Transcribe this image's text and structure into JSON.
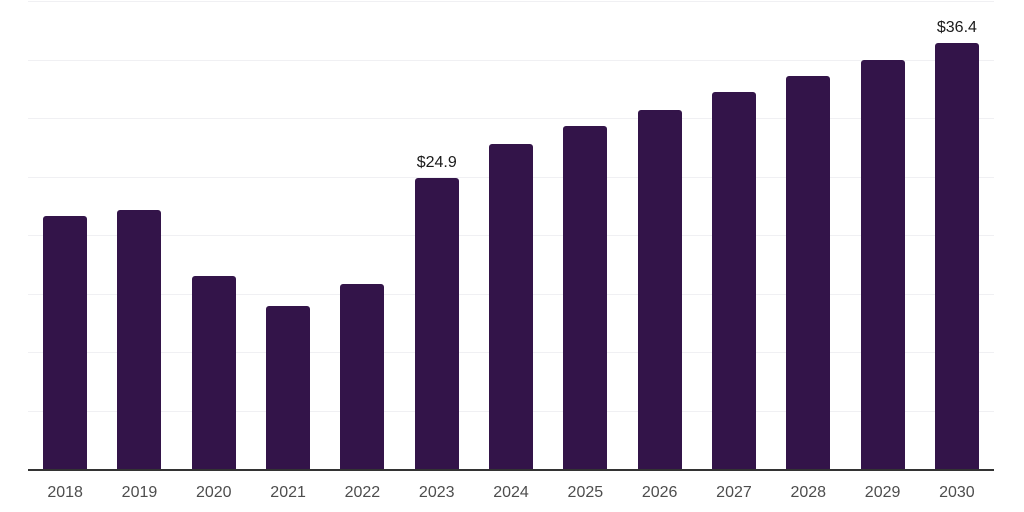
{
  "chart_data": {
    "type": "bar",
    "categories": [
      "2018",
      "2019",
      "2020",
      "2021",
      "2022",
      "2023",
      "2024",
      "2025",
      "2026",
      "2027",
      "2028",
      "2029",
      "2030"
    ],
    "values": [
      21.6,
      22.1,
      16.5,
      13.9,
      15.8,
      24.9,
      27.8,
      29.3,
      30.7,
      32.2,
      33.6,
      35.0,
      36.4
    ],
    "data_labels": [
      "",
      "",
      "",
      "",
      "",
      "$24.9",
      "",
      "",
      "",
      "",
      "",
      "",
      "$36.4"
    ],
    "title": "",
    "xlabel": "",
    "ylabel": "",
    "ylim": [
      0,
      40
    ],
    "grid_step": 5,
    "grid": true,
    "legend": false,
    "y_axis_tick_labels_shown": false,
    "colors": {
      "bar": "#331449",
      "gridline": "#f0f0f3",
      "axis_line": "#333333",
      "tick_label": "#4d4d4d",
      "data_label": "#1a1a1a",
      "background": "#ffffff"
    }
  }
}
